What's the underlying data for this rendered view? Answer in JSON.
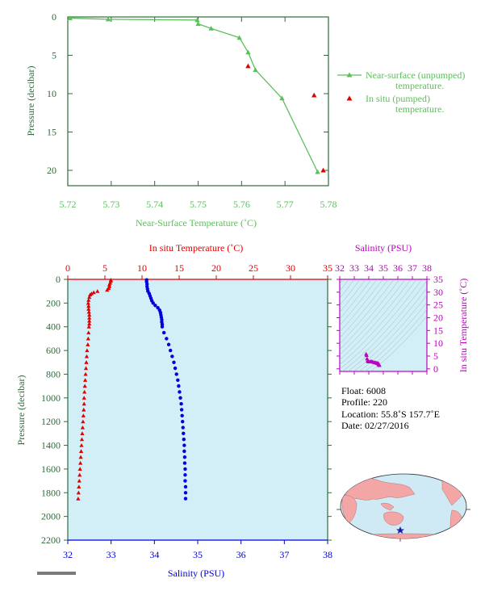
{
  "colors": {
    "axis_green": "#2e6b3a",
    "near_surface_green": "#5cbf5c",
    "insitu_red": "#e00000",
    "salinity_blue": "#0000dd",
    "magenta": "#c000c0",
    "panel_fill": "#d2eef7",
    "land_pink": "#f2a6a6",
    "ocean_blue": "#cfe9f5",
    "float_marker": "#1a1aaa"
  },
  "top_chart": {
    "xlabel": "Near-Surface Temperature (˚C)",
    "ylabel": "Pressure (decibar)",
    "x_ticks": [
      "5.72",
      "5.73",
      "5.74",
      "5.75",
      "5.76",
      "5.77",
      "5.78"
    ],
    "y_ticks": [
      "0",
      "5",
      "10",
      "15",
      "20"
    ],
    "legend_near_1": "Near-surface (unpumped)",
    "legend_near_2": "temperature.",
    "legend_insitu_1": "In situ (pumped)",
    "legend_insitu_2": "temperature."
  },
  "profile_chart": {
    "top_label": "In situ Temperature (˚C)",
    "bottom_label": "Salinity (PSU)",
    "ylabel": "Pressure (decibar)",
    "temp_ticks": [
      "0",
      "5",
      "10",
      "15",
      "20",
      "25",
      "30",
      "35"
    ],
    "sal_ticks": [
      "32",
      "33",
      "34",
      "35",
      "36",
      "37",
      "38"
    ],
    "p_ticks": [
      "0",
      "200",
      "400",
      "600",
      "800",
      "1000",
      "1200",
      "1400",
      "1600",
      "1800",
      "2000",
      "2200"
    ]
  },
  "ts_chart": {
    "top_label": "Salinity (PSU)",
    "right_label": "In situ Temperature (˚C)",
    "sal_ticks": [
      "32",
      "33",
      "34",
      "35",
      "36",
      "37",
      "38"
    ],
    "t_ticks": [
      "0",
      "5",
      "10",
      "15",
      "20",
      "25",
      "30",
      "35"
    ]
  },
  "float_info": {
    "float": "Float:  6008",
    "profile": "Profile:  220",
    "location": "Location:  55.8˚S  157.7˚E",
    "date": "Date:  02/27/2016"
  },
  "chart_data": [
    {
      "type": "scatter",
      "xlabel": "Near-Surface Temperature (˚C)",
      "ylabel": "Pressure (decibar)",
      "xlim": [
        5.72,
        5.78
      ],
      "ylim": [
        22,
        0
      ],
      "series": [
        {
          "name": "Near-surface (unpumped) temperature.",
          "x": [
            5.7205,
            5.7293,
            5.7498,
            5.75,
            5.753,
            5.7595,
            5.7615,
            5.7632,
            5.7693,
            5.7775
          ],
          "y": [
            0.15,
            0.3,
            0.4,
            0.9,
            1.5,
            2.7,
            4.6,
            6.9,
            10.6,
            20.2
          ]
        },
        {
          "name": "In situ (pumped) temperature.",
          "x": [
            5.7615,
            5.7767,
            5.7788
          ],
          "y": [
            6.4,
            10.2,
            20.0
          ]
        }
      ]
    },
    {
      "type": "scatter",
      "ylabel": "Pressure (decibar)",
      "ylim": [
        2200,
        0
      ],
      "temperature_xlim": [
        0,
        35
      ],
      "salinity_xlim": [
        32,
        38
      ],
      "temperature_label": "In situ Temperature (˚C)",
      "salinity_label": "Salinity (PSU)",
      "temperature_points": [
        [
          5.8,
          5
        ],
        [
          5.8,
          15
        ],
        [
          5.7,
          30
        ],
        [
          5.6,
          45
        ],
        [
          5.6,
          60
        ],
        [
          5.5,
          75
        ],
        [
          5.3,
          90
        ],
        [
          4.0,
          100
        ],
        [
          3.5,
          110
        ],
        [
          3.2,
          120
        ],
        [
          3.0,
          130
        ],
        [
          2.9,
          150
        ],
        [
          2.8,
          175
        ],
        [
          2.75,
          200
        ],
        [
          2.8,
          225
        ],
        [
          2.8,
          250
        ],
        [
          2.85,
          275
        ],
        [
          2.9,
          300
        ],
        [
          2.9,
          325
        ],
        [
          2.9,
          350
        ],
        [
          2.9,
          375
        ],
        [
          2.85,
          400
        ],
        [
          2.8,
          450
        ],
        [
          2.75,
          500
        ],
        [
          2.7,
          550
        ],
        [
          2.6,
          600
        ],
        [
          2.55,
          650
        ],
        [
          2.5,
          700
        ],
        [
          2.45,
          750
        ],
        [
          2.4,
          800
        ],
        [
          2.35,
          850
        ],
        [
          2.3,
          900
        ],
        [
          2.25,
          950
        ],
        [
          2.2,
          1000
        ],
        [
          2.2,
          1050
        ],
        [
          2.15,
          1100
        ],
        [
          2.1,
          1150
        ],
        [
          2.05,
          1200
        ],
        [
          2.0,
          1250
        ],
        [
          1.95,
          1300
        ],
        [
          1.9,
          1350
        ],
        [
          1.85,
          1400
        ],
        [
          1.8,
          1450
        ],
        [
          1.75,
          1500
        ],
        [
          1.7,
          1550
        ],
        [
          1.65,
          1600
        ],
        [
          1.6,
          1650
        ],
        [
          1.55,
          1700
        ],
        [
          1.5,
          1750
        ],
        [
          1.45,
          1800
        ],
        [
          1.4,
          1850
        ]
      ],
      "salinity_points": [
        [
          33.82,
          5
        ],
        [
          33.82,
          20
        ],
        [
          33.83,
          40
        ],
        [
          33.83,
          60
        ],
        [
          33.84,
          80
        ],
        [
          33.85,
          100
        ],
        [
          33.88,
          120
        ],
        [
          33.9,
          140
        ],
        [
          33.92,
          160
        ],
        [
          33.94,
          180
        ],
        [
          33.97,
          200
        ],
        [
          34.02,
          220
        ],
        [
          34.08,
          240
        ],
        [
          34.12,
          260
        ],
        [
          34.14,
          280
        ],
        [
          34.15,
          300
        ],
        [
          34.16,
          320
        ],
        [
          34.17,
          340
        ],
        [
          34.17,
          360
        ],
        [
          34.18,
          380
        ],
        [
          34.18,
          400
        ],
        [
          34.22,
          450
        ],
        [
          34.28,
          500
        ],
        [
          34.33,
          550
        ],
        [
          34.37,
          600
        ],
        [
          34.41,
          650
        ],
        [
          34.45,
          700
        ],
        [
          34.48,
          750
        ],
        [
          34.51,
          800
        ],
        [
          34.54,
          850
        ],
        [
          34.56,
          900
        ],
        [
          34.58,
          950
        ],
        [
          34.6,
          1000
        ],
        [
          34.62,
          1050
        ],
        [
          34.63,
          1100
        ],
        [
          34.64,
          1150
        ],
        [
          34.65,
          1200
        ],
        [
          34.66,
          1250
        ],
        [
          34.67,
          1300
        ],
        [
          34.68,
          1350
        ],
        [
          34.69,
          1400
        ],
        [
          34.69,
          1450
        ],
        [
          34.7,
          1500
        ],
        [
          34.7,
          1550
        ],
        [
          34.71,
          1600
        ],
        [
          34.71,
          1650
        ],
        [
          34.71,
          1700
        ],
        [
          34.72,
          1750
        ],
        [
          34.72,
          1800
        ],
        [
          34.72,
          1850
        ]
      ]
    },
    {
      "type": "scatter",
      "xlabel": "Salinity (PSU)",
      "ylabel": "In situ Temperature (˚C)",
      "xlim": [
        32,
        38
      ],
      "ylim": [
        -1,
        35
      ],
      "points": [
        [
          33.82,
          5.8
        ],
        [
          33.85,
          5.3
        ],
        [
          33.88,
          4.0
        ],
        [
          33.92,
          3.2
        ],
        [
          33.97,
          2.8
        ],
        [
          34.05,
          2.8
        ],
        [
          34.12,
          2.85
        ],
        [
          34.16,
          2.9
        ],
        [
          34.18,
          2.85
        ],
        [
          34.25,
          2.75
        ],
        [
          34.33,
          2.6
        ],
        [
          34.41,
          2.5
        ],
        [
          34.48,
          2.4
        ],
        [
          34.54,
          2.3
        ],
        [
          34.58,
          2.2
        ],
        [
          34.62,
          2.15
        ],
        [
          34.65,
          2.05
        ],
        [
          34.67,
          1.95
        ],
        [
          34.69,
          1.85
        ],
        [
          34.7,
          1.75
        ],
        [
          34.71,
          1.65
        ],
        [
          34.72,
          1.5
        ],
        [
          34.72,
          1.4
        ]
      ]
    }
  ]
}
